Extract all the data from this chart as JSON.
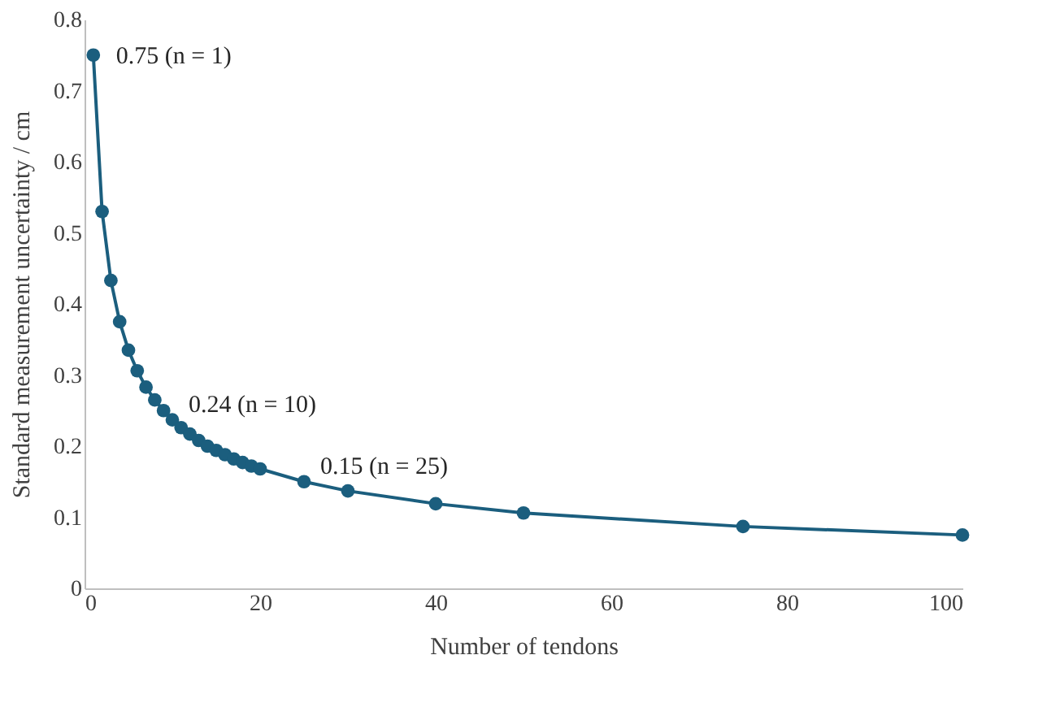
{
  "chart_data": {
    "type": "line",
    "xlabel": "Number of tendons",
    "ylabel": "Standard measurement uncertainty / cm",
    "x": [
      1,
      2,
      3,
      4,
      5,
      6,
      7,
      8,
      9,
      10,
      11,
      12,
      13,
      14,
      15,
      16,
      17,
      18,
      19,
      20,
      25,
      30,
      40,
      50,
      75,
      100
    ],
    "series": [
      {
        "color": "#1b5e7e",
        "values": [
          0.75,
          0.53,
          0.433,
          0.375,
          0.335,
          0.306,
          0.283,
          0.265,
          0.25,
          0.237,
          0.226,
          0.217,
          0.208,
          0.2,
          0.194,
          0.188,
          0.182,
          0.177,
          0.172,
          0.168,
          0.15,
          0.137,
          0.119,
          0.106,
          0.087,
          0.075
        ]
      }
    ],
    "xlim": [
      0,
      100
    ],
    "xticks": [
      0,
      20,
      40,
      60,
      80,
      100
    ],
    "ylim": [
      0,
      0.8
    ],
    "yticks": [
      0,
      0.1,
      0.2,
      0.3,
      0.4,
      0.5,
      0.6,
      0.7,
      0.8
    ],
    "marker": "circle",
    "line_style": "solid",
    "grid": false,
    "annotations": [
      {
        "text": "0.75 (n = 1)",
        "x": 1,
        "y": 0.75
      },
      {
        "text": "0.24 (n = 10)",
        "x": 10,
        "y": 0.237
      },
      {
        "text": "0.15 (n = 25)",
        "x": 25,
        "y": 0.15
      }
    ]
  }
}
